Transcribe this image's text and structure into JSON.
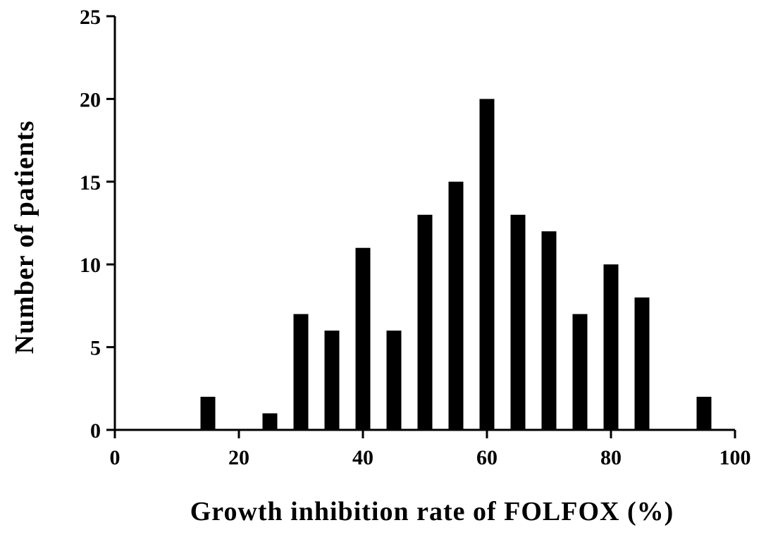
{
  "chart_data": {
    "type": "bar",
    "title": "",
    "xlabel": "Growth inhibition rate of FOLFOX (%)",
    "ylabel": "Number of patients",
    "xlim": [
      0,
      100
    ],
    "ylim": [
      0,
      25
    ],
    "xticks": [
      0,
      20,
      40,
      60,
      80,
      100
    ],
    "yticks": [
      0,
      5,
      10,
      15,
      20,
      25
    ],
    "grid": false,
    "bar_color": "#000000",
    "x": [
      15,
      25,
      30,
      35,
      40,
      45,
      50,
      55,
      60,
      65,
      70,
      75,
      80,
      85,
      95
    ],
    "values": [
      2,
      1,
      7,
      6,
      11,
      6,
      13,
      15,
      20,
      13,
      12,
      7,
      10,
      8,
      2
    ]
  }
}
